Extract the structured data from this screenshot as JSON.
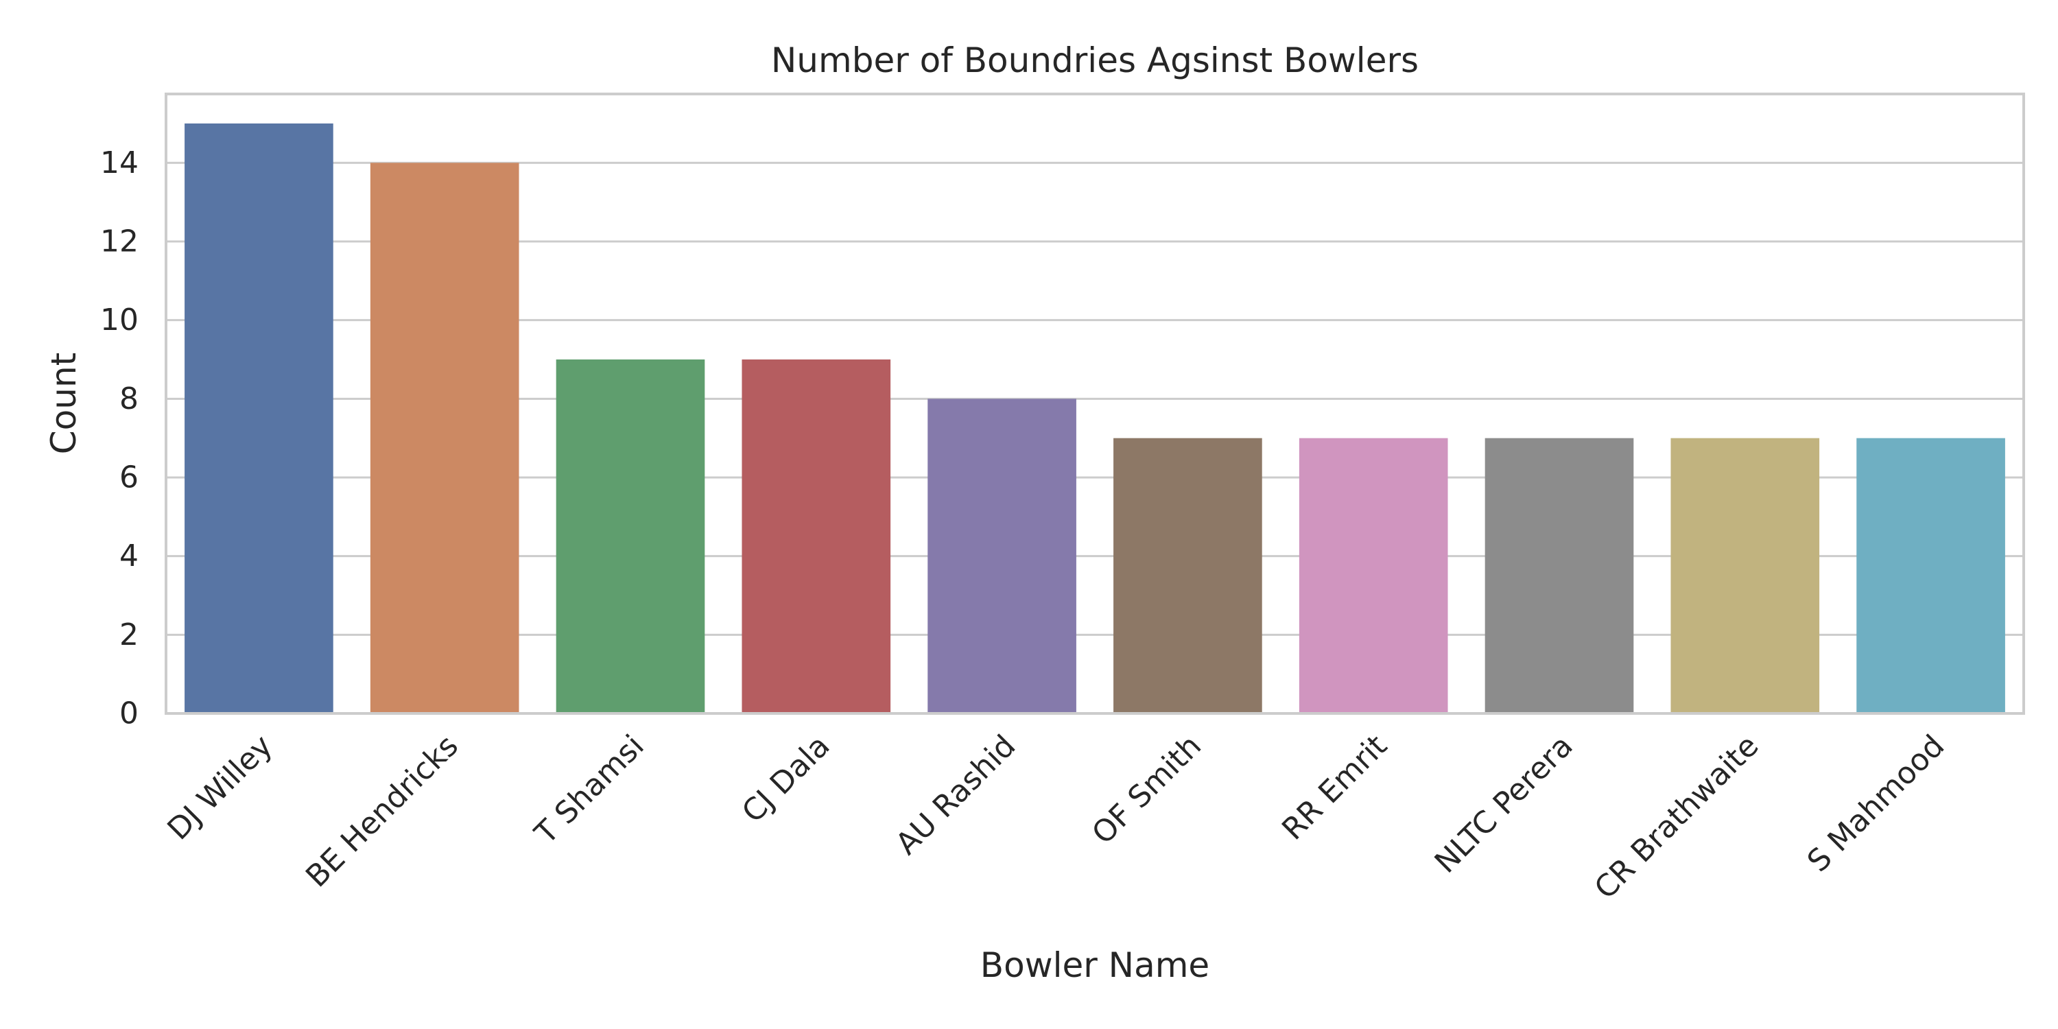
{
  "chart_data": {
    "type": "bar",
    "title": "Number of Boundries Agsinst Bowlers",
    "xlabel": "Bowler Name",
    "ylabel": "Count",
    "categories": [
      "DJ Willey",
      "BE Hendricks",
      "T Shamsi",
      "CJ Dala",
      "AU Rashid",
      "OF Smith",
      "RR Emrit",
      "NLTC Perera",
      "CR Brathwaite",
      "S Mahmood"
    ],
    "values": [
      15,
      14,
      9,
      9,
      8,
      7,
      7,
      7,
      7,
      7
    ],
    "colors": [
      "#5875a4",
      "#cc8963",
      "#5f9e6e",
      "#b55d60",
      "#857aab",
      "#8d7866",
      "#d095bf",
      "#8c8c8c",
      "#c1b37f",
      "#6fafc2"
    ],
    "ylim": [
      0,
      15.75
    ],
    "yticks": [
      0,
      2,
      4,
      6,
      8,
      10,
      12,
      14
    ],
    "grid": true,
    "xtick_rotation": -45
  }
}
